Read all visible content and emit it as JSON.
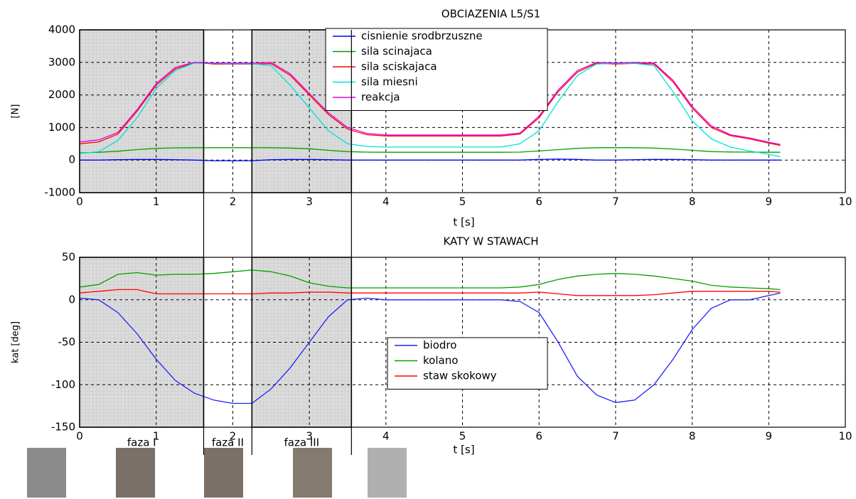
{
  "chart_data": [
    {
      "type": "line",
      "title": "OBCIAZENIA L5/S1",
      "xlabel": "t [s]",
      "ylabel": "[N]",
      "xlim": [
        0,
        10
      ],
      "xticks": [
        0,
        1,
        2,
        3,
        4,
        5,
        6,
        7,
        8,
        9,
        10
      ],
      "ylim": [
        -1000,
        4000
      ],
      "yticks": [
        -1000,
        0,
        1000,
        2000,
        3000,
        4000
      ],
      "grid": true,
      "legend": "upper center",
      "x": [
        0,
        0.25,
        0.5,
        0.75,
        1,
        1.25,
        1.5,
        1.75,
        2,
        2.25,
        2.5,
        2.75,
        3,
        3.25,
        3.5,
        3.75,
        4,
        4.25,
        4.5,
        4.75,
        5,
        5.25,
        5.5,
        5.75,
        6,
        6.25,
        6.5,
        6.75,
        7,
        7.25,
        7.5,
        7.75,
        8,
        8.25,
        8.5,
        8.75,
        9,
        9.15
      ],
      "series": [
        {
          "name": "cisnienie srodbrzuszne",
          "color": "#0000ff",
          "values": [
            0,
            0,
            10,
            20,
            20,
            10,
            0,
            -20,
            -20,
            -20,
            10,
            20,
            20,
            10,
            0,
            0,
            0,
            0,
            0,
            0,
            0,
            0,
            0,
            0,
            20,
            30,
            20,
            0,
            0,
            10,
            20,
            20,
            10,
            0,
            0,
            0,
            0,
            0
          ]
        },
        {
          "name": "sila scinajaca",
          "color": "#00a000",
          "values": [
            220,
            240,
            270,
            320,
            360,
            375,
            380,
            380,
            380,
            380,
            380,
            370,
            350,
            300,
            260,
            245,
            240,
            240,
            240,
            240,
            240,
            240,
            240,
            245,
            280,
            320,
            360,
            380,
            380,
            380,
            370,
            340,
            300,
            260,
            250,
            245,
            240,
            240
          ]
        },
        {
          "name": "sila sciskajaca",
          "color": "#ff0000",
          "values": [
            500,
            560,
            800,
            1500,
            2300,
            2800,
            3000,
            2950,
            2950,
            2950,
            2960,
            2600,
            2000,
            1400,
            950,
            780,
            740,
            740,
            740,
            740,
            740,
            740,
            740,
            800,
            1300,
            2100,
            2700,
            2970,
            2950,
            2970,
            2950,
            2400,
            1600,
            1000,
            750,
            650,
            520,
            450
          ]
        },
        {
          "name": "sila miesni",
          "color": "#00e0e0",
          "values": [
            200,
            260,
            600,
            1300,
            2200,
            2750,
            2980,
            2970,
            2960,
            2960,
            2900,
            2300,
            1600,
            900,
            500,
            420,
            400,
            400,
            400,
            400,
            400,
            400,
            400,
            500,
            900,
            1800,
            2600,
            2950,
            2970,
            2970,
            2900,
            2100,
            1200,
            650,
            400,
            280,
            180,
            100
          ]
        },
        {
          "name": "reakcja",
          "color": "#e000e0",
          "values": [
            560,
            620,
            850,
            1550,
            2350,
            2850,
            3000,
            2980,
            2980,
            2980,
            3000,
            2650,
            2050,
            1450,
            1000,
            820,
            770,
            770,
            770,
            770,
            770,
            770,
            770,
            830,
            1350,
            2150,
            2750,
            3000,
            2980,
            3000,
            2980,
            2450,
            1650,
            1050,
            780,
            680,
            550,
            480
          ]
        }
      ]
    },
    {
      "type": "line",
      "title": "KATY W STAWACH",
      "xlabel": "t [s]",
      "ylabel": "kat [deg]",
      "xlim": [
        0,
        10
      ],
      "xticks": [
        0,
        1,
        2,
        3,
        4,
        5,
        6,
        7,
        8,
        9,
        10
      ],
      "ylim": [
        -150,
        50
      ],
      "yticks": [
        -150,
        -100,
        -50,
        0,
        50
      ],
      "grid": true,
      "legend": "center",
      "x": [
        0,
        0.25,
        0.5,
        0.75,
        1,
        1.25,
        1.5,
        1.75,
        2,
        2.25,
        2.5,
        2.75,
        3,
        3.25,
        3.5,
        3.75,
        4,
        4.25,
        4.5,
        4.75,
        5,
        5.25,
        5.5,
        5.75,
        6,
        6.25,
        6.5,
        6.75,
        7,
        7.25,
        7.5,
        7.75,
        8,
        8.25,
        8.5,
        8.75,
        9,
        9.15
      ],
      "series": [
        {
          "name": "biodro",
          "color": "#2020ff",
          "values": [
            2,
            0,
            -15,
            -40,
            -70,
            -95,
            -110,
            -118,
            -122,
            -122,
            -105,
            -80,
            -50,
            -20,
            0,
            2,
            0,
            0,
            0,
            0,
            0,
            0,
            0,
            -2,
            -15,
            -50,
            -90,
            -112,
            -121,
            -118,
            -100,
            -70,
            -35,
            -10,
            0,
            0,
            5,
            8
          ]
        },
        {
          "name": "kolano",
          "color": "#00a000",
          "values": [
            15,
            18,
            30,
            32,
            29,
            30,
            30,
            31,
            33,
            35,
            33,
            28,
            20,
            16,
            14,
            14,
            14,
            14,
            14,
            14,
            14,
            14,
            14,
            15,
            18,
            24,
            28,
            30,
            31,
            30,
            28,
            25,
            22,
            17,
            15,
            14,
            13,
            12
          ]
        },
        {
          "name": "staw skokowy",
          "color": "#ff0000",
          "values": [
            8,
            10,
            12,
            12,
            7,
            7,
            7,
            7,
            7,
            7,
            8,
            8,
            9,
            9,
            8,
            8,
            8,
            8,
            8,
            8,
            8,
            8,
            8,
            8,
            9,
            7,
            5,
            5,
            5,
            5,
            6,
            8,
            10,
            10,
            10,
            10,
            10,
            9
          ]
        }
      ],
      "phases": [
        {
          "label": "faza I",
          "start": 0,
          "end": 1.62,
          "shaded": true
        },
        {
          "label": "faza II",
          "start": 1.62,
          "end": 2.25,
          "shaded": false
        },
        {
          "label": "faza III",
          "start": 2.25,
          "end": 3.55,
          "shaded": true
        }
      ]
    }
  ]
}
